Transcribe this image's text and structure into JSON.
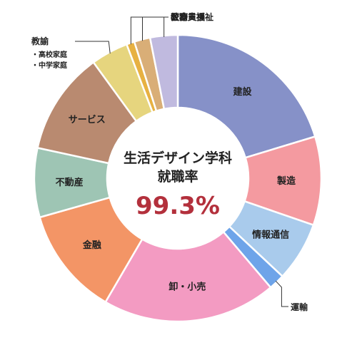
{
  "chart_data": {
    "type": "pie",
    "variant": "donut",
    "center": {
      "line1": "生活デザイン学科",
      "line2": "就職率",
      "value": "99.3%"
    },
    "unit": "%",
    "slices": [
      {
        "label": "建設",
        "value": 20.3,
        "color": "#8691c8",
        "label_position": "inside"
      },
      {
        "label": "製造",
        "value": 10.0,
        "color": "#f49aa0",
        "label_position": "inside"
      },
      {
        "label": "情報通信",
        "value": 6.7,
        "color": "#a9cbec",
        "label_position": "inside"
      },
      {
        "label": "運輸",
        "value": 1.8,
        "color": "#6ea4e9",
        "label_position": "outside"
      },
      {
        "label": "卸・小売",
        "value": 19.6,
        "color": "#f39bc2",
        "label_position": "inside"
      },
      {
        "label": "金融",
        "value": 12.2,
        "color": "#f39566",
        "label_position": "inside"
      },
      {
        "label": "不動産",
        "value": 7.8,
        "color": "#9ec5b4",
        "label_position": "inside"
      },
      {
        "label": "サービス",
        "value": 11.6,
        "color": "#b98a70",
        "label_position": "inside"
      },
      {
        "label": "教諭",
        "value": 4.2,
        "color": "#e6d57e",
        "label_position": "outside",
        "sub_items": [
          "・高校家庭",
          "・中学家庭"
        ]
      },
      {
        "label": "教育支援",
        "value": 0.9,
        "color": "#e7b142",
        "label_position": "outside"
      },
      {
        "label": "医療・福祉",
        "value": 1.8,
        "color": "#d9ae77",
        "label_position": "outside"
      },
      {
        "label": "公務員",
        "value": 3.1,
        "color": "#c0badf",
        "label_position": "outside"
      }
    ]
  }
}
